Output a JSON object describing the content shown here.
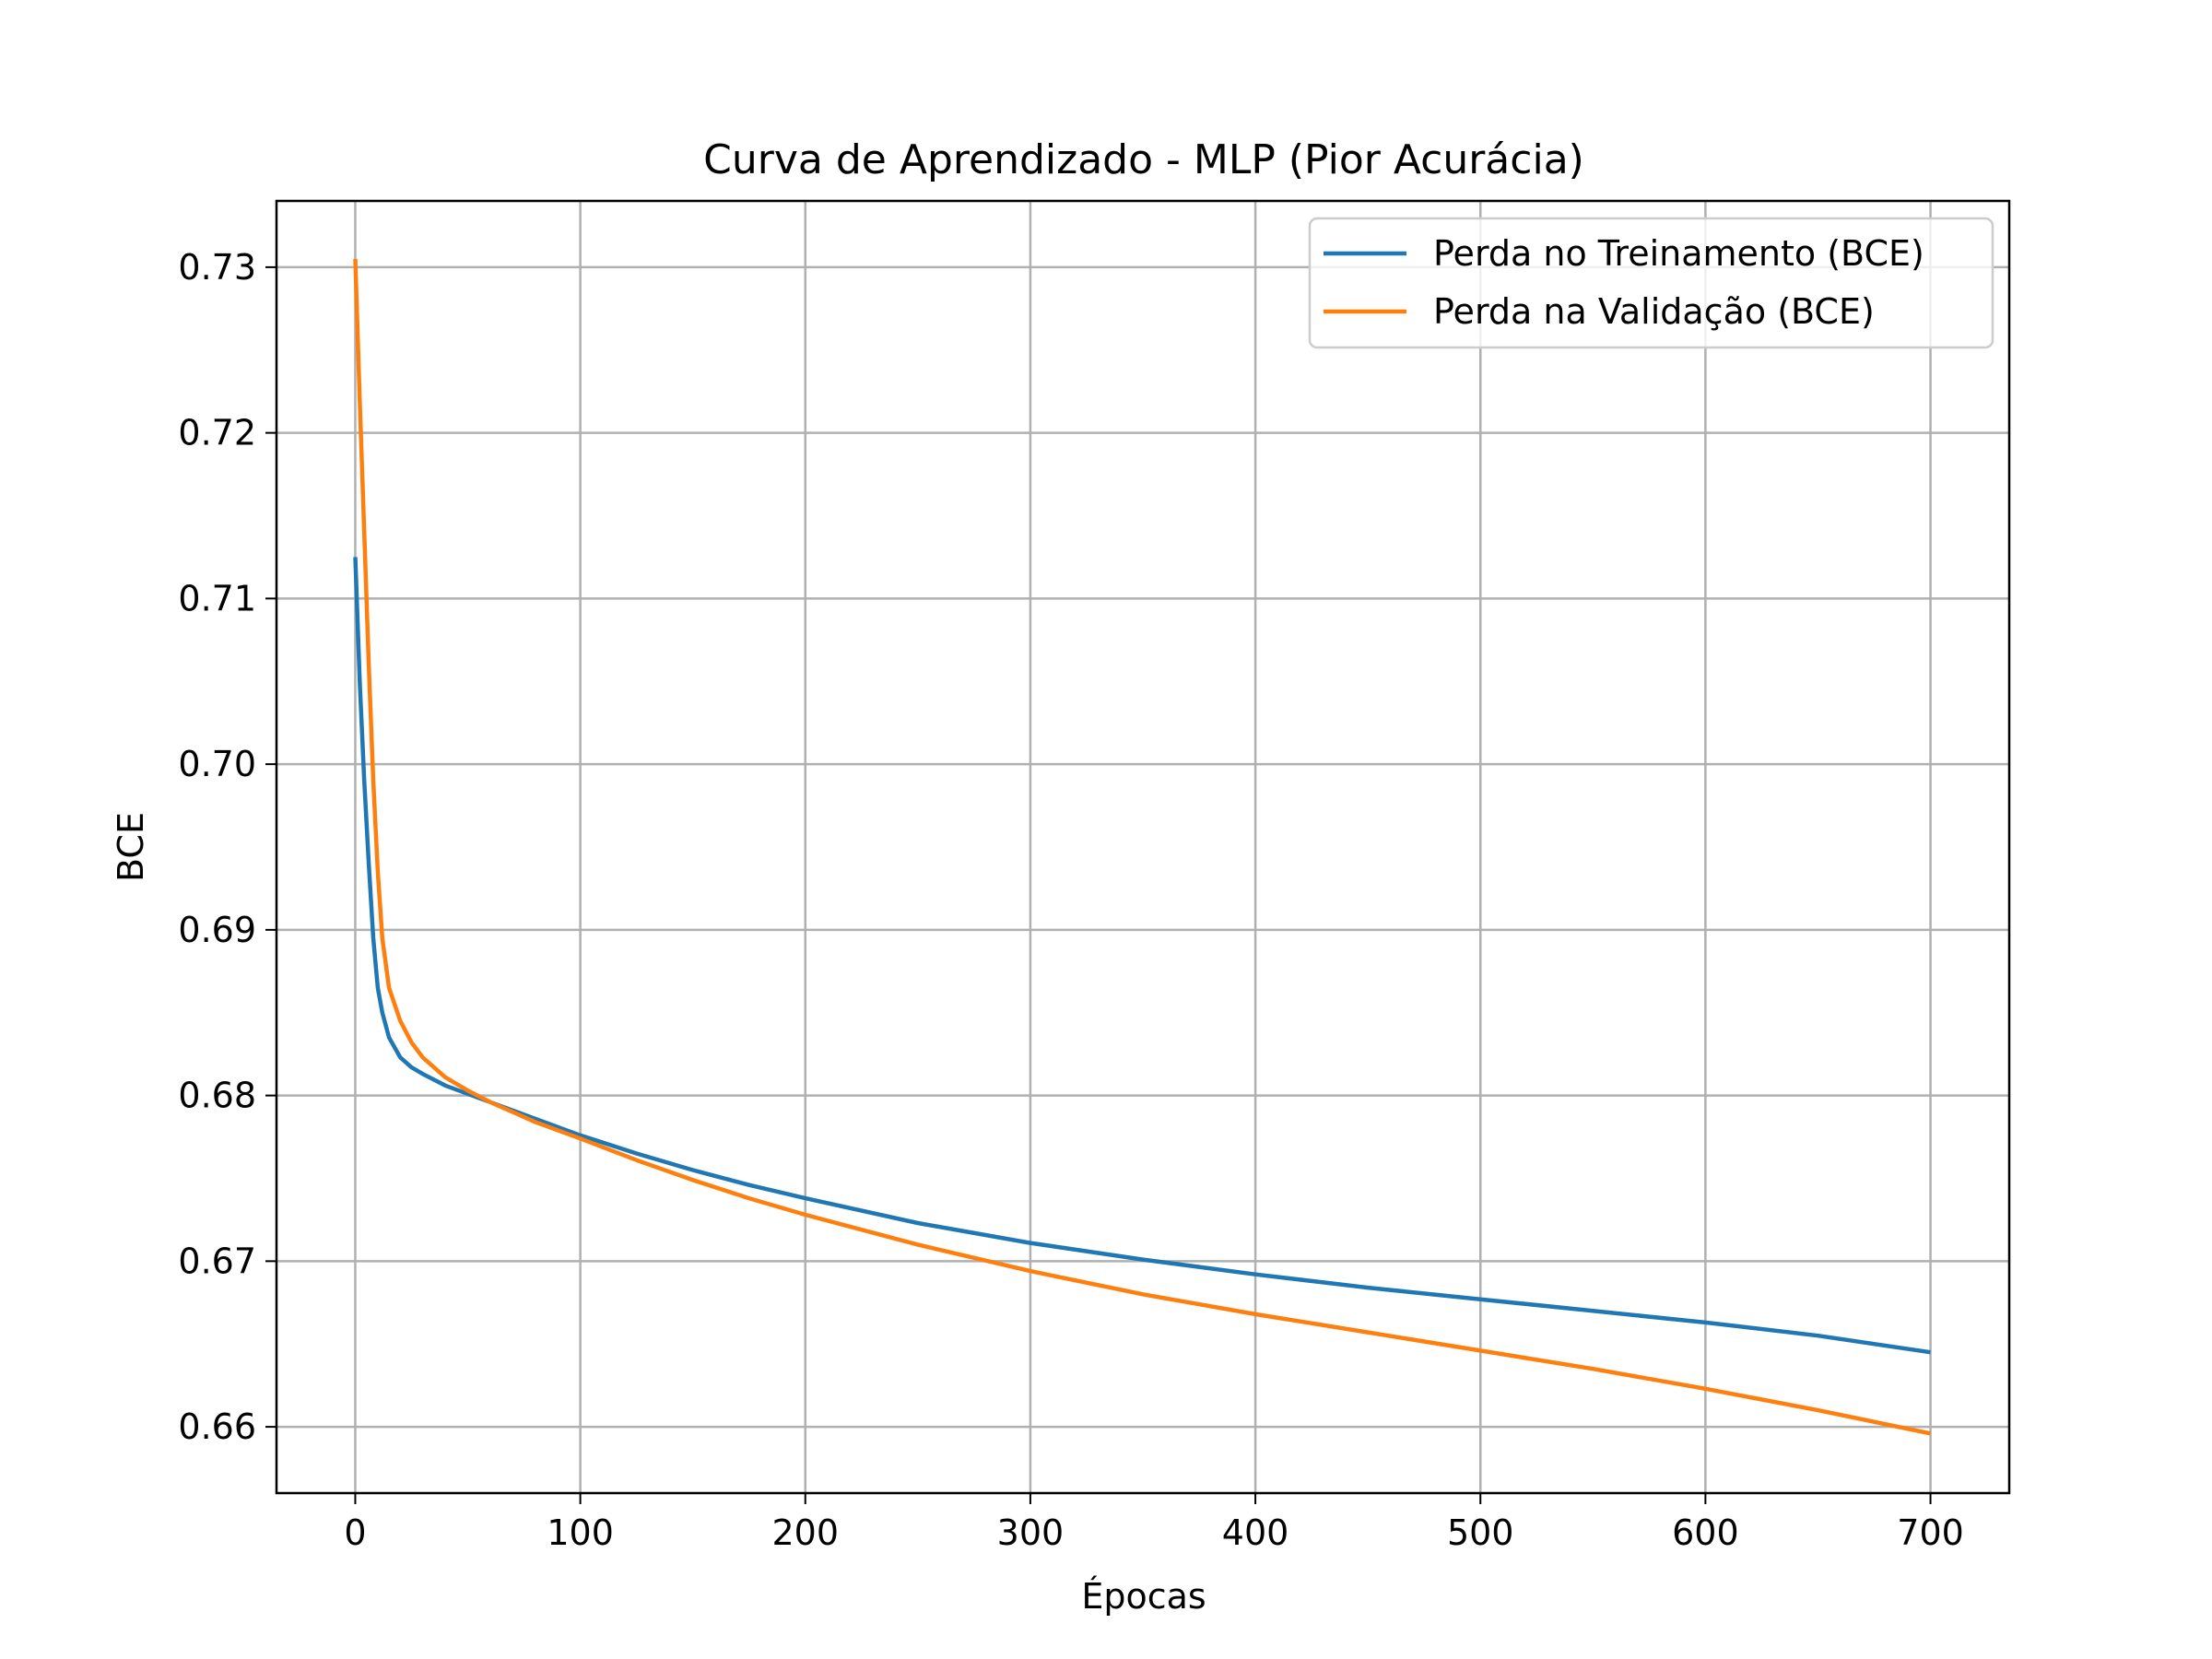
{
  "chart_data": {
    "type": "line",
    "title": "Curva de Aprendizado - MLP (Pior Acurácia)",
    "xlabel": "Épocas",
    "ylabel": "BCE",
    "xlim": [
      -35,
      735
    ],
    "ylim": [
      0.656,
      0.734
    ],
    "xticks": [
      0,
      100,
      200,
      300,
      400,
      500,
      600,
      700
    ],
    "xtick_labels": [
      "0",
      "100",
      "200",
      "300",
      "400",
      "500",
      "600",
      "700"
    ],
    "yticks": [
      0.66,
      0.67,
      0.68,
      0.69,
      0.7,
      0.71,
      0.72,
      0.73
    ],
    "ytick_labels": [
      "0.66",
      "0.67",
      "0.68",
      "0.69",
      "0.70",
      "0.71",
      "0.72",
      "0.73"
    ],
    "grid": true,
    "legend_position": "top-right",
    "series": [
      {
        "name": "Perda no Treinamento (BCE)",
        "color": "#1f77b4",
        "x": [
          0,
          2,
          4,
          6,
          8,
          10,
          12,
          15,
          20,
          25,
          30,
          40,
          50,
          60,
          70,
          80,
          100,
          125,
          150,
          175,
          200,
          250,
          300,
          350,
          400,
          450,
          500,
          550,
          600,
          650,
          700
        ],
        "y": [
          0.7125,
          0.705,
          0.699,
          0.694,
          0.6895,
          0.6865,
          0.685,
          0.6835,
          0.6823,
          0.6817,
          0.6813,
          0.6806,
          0.6801,
          0.6796,
          0.6791,
          0.6786,
          0.6776,
          0.6765,
          0.6755,
          0.6746,
          0.6738,
          0.6723,
          0.6711,
          0.6701,
          0.6692,
          0.6684,
          0.6677,
          0.667,
          0.6663,
          0.6655,
          0.6645
        ]
      },
      {
        "name": "Perda na Validação (BCE)",
        "color": "#ff7f0e",
        "x": [
          0,
          2,
          4,
          6,
          8,
          10,
          12,
          15,
          20,
          25,
          30,
          40,
          50,
          60,
          70,
          80,
          100,
          125,
          150,
          175,
          200,
          250,
          300,
          350,
          400,
          450,
          500,
          550,
          600,
          650,
          700
        ],
        "y": [
          0.7305,
          0.722,
          0.714,
          0.706,
          0.699,
          0.6935,
          0.6895,
          0.6865,
          0.6845,
          0.6832,
          0.6823,
          0.6811,
          0.6803,
          0.6796,
          0.679,
          0.6784,
          0.6774,
          0.6761,
          0.6749,
          0.6738,
          0.6728,
          0.671,
          0.6694,
          0.668,
          0.6668,
          0.6657,
          0.6646,
          0.6635,
          0.6623,
          0.661,
          0.6596
        ]
      }
    ]
  }
}
